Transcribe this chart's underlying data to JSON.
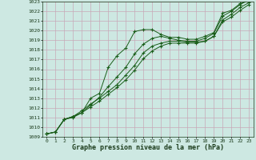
{
  "bg_color": "#cde8e2",
  "grid_color": "#c8a8b8",
  "line_color": "#1a5e1a",
  "marker": "+",
  "title": "Graphe pression niveau de la mer (hPa)",
  "xlim": [
    -0.5,
    23.5
  ],
  "ylim": [
    1009,
    1023
  ],
  "xticks": [
    0,
    1,
    2,
    3,
    4,
    5,
    6,
    7,
    8,
    9,
    10,
    11,
    12,
    13,
    14,
    15,
    16,
    17,
    18,
    19,
    20,
    21,
    22,
    23
  ],
  "yticks": [
    1009,
    1010,
    1011,
    1012,
    1013,
    1014,
    1015,
    1016,
    1017,
    1018,
    1019,
    1020,
    1021,
    1022,
    1023
  ],
  "series": [
    [
      1009.3,
      1009.5,
      1010.8,
      1011.0,
      1011.5,
      1013.0,
      1013.5,
      1016.2,
      1017.4,
      1018.2,
      1019.9,
      1020.1,
      1020.1,
      1019.6,
      1019.3,
      1019.3,
      1019.1,
      1019.1,
      1019.4,
      1019.8,
      1021.8,
      1022.1,
      1022.8,
      1023.1
    ],
    [
      1009.3,
      1009.5,
      1010.8,
      1011.1,
      1011.5,
      1012.3,
      1013.1,
      1014.2,
      1015.2,
      1016.2,
      1017.6,
      1018.6,
      1019.2,
      1019.4,
      1019.2,
      1019.0,
      1018.9,
      1018.9,
      1019.2,
      1019.7,
      1021.5,
      1022.0,
      1022.7,
      1023.2
    ],
    [
      1009.3,
      1009.5,
      1010.8,
      1011.1,
      1011.7,
      1012.4,
      1013.0,
      1013.7,
      1014.4,
      1015.4,
      1016.4,
      1017.7,
      1018.4,
      1018.7,
      1018.9,
      1018.9,
      1018.8,
      1018.8,
      1018.9,
      1019.4,
      1021.1,
      1021.7,
      1022.4,
      1022.9
    ],
    [
      1009.3,
      1009.5,
      1010.8,
      1011.1,
      1011.5,
      1012.1,
      1012.7,
      1013.4,
      1014.1,
      1014.9,
      1015.9,
      1017.1,
      1017.9,
      1018.4,
      1018.7,
      1018.7,
      1018.7,
      1018.7,
      1018.9,
      1019.4,
      1020.9,
      1021.4,
      1022.1,
      1022.7
    ]
  ]
}
